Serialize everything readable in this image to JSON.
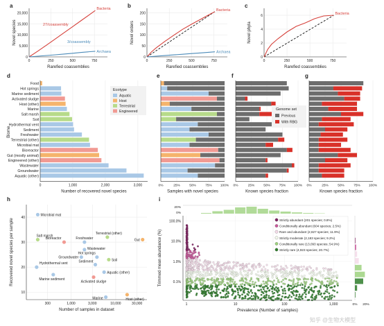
{
  "watermark": "知乎 @生物大模型",
  "colors": {
    "bacteria": "#d6413b",
    "archaea": "#4a8ab8",
    "aquatic": "#a9c8e6",
    "host": "#f5b46c",
    "terrestrial": "#b7db8a",
    "engineered": "#f19a93",
    "gray": "#6d6d6d",
    "rbg": "#d93129"
  },
  "chart_data": [
    {
      "id": "a",
      "type": "line",
      "letter": "a",
      "xlabel": "Rarefied coassemblies",
      "ylabel": "Novel species",
      "xlim": [
        0,
        900
      ],
      "ylim": [
        0,
        22000
      ],
      "xticks": [
        "0",
        "250",
        "500",
        "750"
      ],
      "yticks": [
        "0",
        "5,000",
        "10,000",
        "15,000",
        "20,000"
      ],
      "series": [
        {
          "name": "Bacteria",
          "x": [
            0,
            100,
            200,
            300,
            400,
            500,
            600,
            700,
            760
          ],
          "y": [
            0,
            2600,
            5300,
            8100,
            10900,
            13700,
            16500,
            19300,
            21000
          ]
        },
        {
          "name": "Archaea",
          "x": [
            0,
            100,
            200,
            300,
            400,
            500,
            600,
            700,
            760
          ],
          "y": [
            0,
            300,
            620,
            950,
            1300,
            1650,
            2000,
            2350,
            2550
          ]
        }
      ],
      "annotations": [
        "27/coassembly",
        "3/coassembly"
      ]
    },
    {
      "id": "b",
      "type": "line",
      "letter": "b",
      "xlabel": "Rarefied coassemblies",
      "ylabel": "Novel orders",
      "xlim": [
        0,
        900
      ],
      "ylim": [
        0,
        220
      ],
      "xticks": [
        "0",
        "250",
        "500",
        "750"
      ],
      "yticks": [
        "0",
        "50",
        "100",
        "150",
        "200"
      ],
      "series": [
        {
          "name": "Bacteria",
          "x": [
            0,
            50,
            100,
            200,
            300,
            400,
            500,
            600,
            700,
            760
          ],
          "y": [
            0,
            22,
            40,
            70,
            98,
            125,
            148,
            170,
            192,
            205
          ]
        },
        {
          "name": "Archaea",
          "x": [
            0,
            100,
            200,
            300,
            400,
            500,
            600,
            700,
            760
          ],
          "y": [
            0,
            3,
            6,
            9,
            12,
            15,
            18,
            21,
            23
          ]
        }
      ],
      "reference_line": {
        "x": [
          0,
          760
        ],
        "y": [
          0,
          205
        ]
      }
    },
    {
      "id": "c",
      "type": "line",
      "letter": "c",
      "xlabel": "Rarefied coassemblies",
      "ylabel": "Novel phyla",
      "xlim": [
        0,
        900
      ],
      "ylim": [
        0,
        7
      ],
      "xticks": [
        "0",
        "250",
        "500",
        "750"
      ],
      "yticks": [
        "0",
        "2",
        "4",
        "6"
      ],
      "series": [
        {
          "name": "Bacteria",
          "x": [
            0,
            40,
            80,
            150,
            250,
            350,
            450,
            550,
            650,
            760
          ],
          "y": [
            0,
            1.1,
            1.8,
            2.6,
            3.6,
            4.4,
            4.9,
            5.5,
            5.9,
            6.0
          ]
        }
      ],
      "reference_line": {
        "x": [
          0,
          760
        ],
        "y": [
          0,
          6
        ]
      }
    },
    {
      "id": "d",
      "type": "bar",
      "letter": "d",
      "orientation": "horizontal",
      "xlabel": "Number of recovered novel species",
      "ylabel": "Biome",
      "xlim": [
        0,
        3300
      ],
      "xticks": [
        "0",
        "1,000",
        "2,000",
        "3,000"
      ],
      "categories": [
        "Food",
        "Hot springs",
        "Marine sediment",
        "Activated sludge",
        "Host (other)",
        "Marine",
        "Salt marsh",
        "Soil",
        "Hydrothermal vent",
        "Sediment",
        "Freshwater",
        "Terrestrial (other)",
        "Microbial mat",
        "Bioreactor",
        "Gut (mostly animal)",
        "Engineered (other)",
        "Wastewater",
        "Groundwater",
        "Aquatic (other)"
      ],
      "ecotypes": [
        "Host",
        "Aquatic",
        "Aquatic",
        "Engineered",
        "Host",
        "Aquatic",
        "Terrestrial",
        "Terrestrial",
        "Aquatic",
        "Aquatic",
        "Aquatic",
        "Terrestrial",
        "Aquatic",
        "Engineered",
        "Host",
        "Engineered",
        "Aquatic",
        "Aquatic",
        "Aquatic"
      ],
      "values": [
        60,
        640,
        650,
        760,
        780,
        820,
        900,
        980,
        1010,
        1040,
        1280,
        1500,
        1530,
        1770,
        1810,
        1880,
        2100,
        2650,
        3180
      ],
      "legend": {
        "title": "Ecotype",
        "items": [
          "Aquatic",
          "Host",
          "Terrestrial",
          "Engineered"
        ]
      }
    },
    {
      "id": "e",
      "type": "bar",
      "letter": "e",
      "orientation": "horizontal",
      "stacked": true,
      "xlabel": "Samples with novel species",
      "xticks": [
        "0%",
        "25%",
        "50%",
        "75%",
        "100%"
      ],
      "values": [
        0.05,
        0.1,
        0.75,
        0.88,
        0.14,
        0.48,
        0.88,
        0.24,
        0.58,
        0.45,
        0.75,
        0.55,
        0.45,
        0.9,
        0.62,
        0.92,
        0.85,
        0.42,
        0.58
      ]
    },
    {
      "id": "f",
      "type": "bar",
      "letter": "f",
      "orientation": "horizontal",
      "stacked": true,
      "xlabel": "Known species fraction",
      "xticks": [
        "0%",
        "25%",
        "50%",
        "75%",
        "100%"
      ],
      "series": [
        {
          "name": "Previous",
          "values": [
            0.82,
            0.85,
            0.72,
            0.15,
            0.57,
            0.38,
            0.38,
            0.22,
            0.68,
            0.48,
            0.75,
            0.68,
            0.48,
            0.82,
            0.72,
            0.48,
            0.9,
            0.82,
            0.48
          ]
        },
        {
          "name": "With RBG",
          "values": [
            0.0,
            0.0,
            0.0,
            0.04,
            0.07,
            0.02,
            0.36,
            0.0,
            0.04,
            0.0,
            0.0,
            0.1,
            0.12,
            0.09,
            0.0,
            0.03,
            0.04,
            0.03,
            0.04
          ]
        }
      ],
      "legend": {
        "title": "Genome set",
        "items": [
          "Previous",
          "With RBG"
        ]
      }
    },
    {
      "id": "g",
      "type": "bar",
      "letter": "g",
      "orientation": "horizontal",
      "stacked": true,
      "xlabel": "Known species fraction",
      "xticks": [
        "0%",
        "25%",
        "50%",
        "75%",
        "100%"
      ],
      "series": [
        {
          "name": "Previous",
          "values": [
            0.85,
            0.38,
            0.45,
            0.55,
            0.2,
            0.3,
            0.5,
            0.2,
            0.15,
            0.25,
            0.18,
            0.15,
            0.15,
            0.15,
            0.45,
            0.25,
            0.15,
            0.15,
            0.2
          ]
        },
        {
          "name": "With RBG",
          "values": [
            0.0,
            0.45,
            0.35,
            0.25,
            0.55,
            0.45,
            0.35,
            0.45,
            0.55,
            0.35,
            0.35,
            0.45,
            0.35,
            0.5,
            0.3,
            0.35,
            0.5,
            0.4,
            0.35
          ]
        }
      ]
    },
    {
      "id": "h",
      "type": "scatter",
      "letter": "h",
      "xlabel": "Number of samples in dataset",
      "ylabel": "Recovered novel species per sample",
      "xscale": "log",
      "xlim": [
        100,
        50000
      ],
      "ylim": [
        7,
        45
      ],
      "xticks": [
        {
          "v": 300,
          "t": "300"
        },
        {
          "v": 1000,
          "t": "1,000"
        },
        {
          "v": 3000,
          "t": "3,000"
        },
        {
          "v": 10000,
          "t": "10,000"
        },
        {
          "v": 30000,
          "t": "30,000"
        }
      ],
      "yticks": [
        10,
        20,
        30,
        40
      ],
      "points": [
        {
          "label": "Microbial mat",
          "x": 180,
          "y": 41,
          "eco": "Aquatic"
        },
        {
          "label": "Salt marsh",
          "x": 180,
          "y": 31,
          "eco": "Terrestrial"
        },
        {
          "label": "Bioreactor",
          "x": 700,
          "y": 30,
          "eco": "Engineered"
        },
        {
          "label": "Freshwater",
          "x": 2000,
          "y": 30,
          "eco": "Aquatic"
        },
        {
          "label": "Terrestrial (other)",
          "x": 6500,
          "y": 32,
          "eco": "Terrestrial"
        },
        {
          "label": "Gut",
          "x": 40000,
          "y": 31,
          "eco": "Host"
        },
        {
          "label": "Wastewater",
          "x": 2000,
          "y": 27,
          "eco": "Aquatic"
        },
        {
          "label": "Groundwater",
          "x": 1700,
          "y": 24,
          "eco": "Aquatic"
        },
        {
          "label": "Hot springs",
          "x": 3800,
          "y": 24,
          "eco": "Aquatic"
        },
        {
          "label": "Soil",
          "x": 7000,
          "y": 23,
          "eco": "Terrestrial"
        },
        {
          "label": "Sediment",
          "x": 3500,
          "y": 21,
          "eco": "Aquatic"
        },
        {
          "label": "Hydrothermal vent",
          "x": 170,
          "y": 20,
          "eco": "Aquatic"
        },
        {
          "label": "Aquatic (other)",
          "x": 5500,
          "y": 18,
          "eco": "Aquatic"
        },
        {
          "label": "Marine sediment",
          "x": 400,
          "y": 17,
          "eco": "Aquatic"
        },
        {
          "label": "Activated sludge",
          "x": 3200,
          "y": 16,
          "eco": "Engineered"
        },
        {
          "label": "Host (other)",
          "x": 18000,
          "y": 9,
          "eco": "Host"
        },
        {
          "label": "Marine",
          "x": 6000,
          "y": 8,
          "eco": "Aquatic"
        }
      ]
    },
    {
      "id": "i",
      "type": "scatter",
      "letter": "i",
      "xlabel": "Prevalence (Number of samples)",
      "ylabel": "Trimmed mean abundance (%)",
      "xscale": "log",
      "yscale": "log",
      "xticks": [
        {
          "v": 1,
          "t": "1"
        },
        {
          "v": 10,
          "t": "10"
        },
        {
          "v": 100,
          "t": "100"
        },
        {
          "v": 1000,
          "t": "1,000"
        }
      ],
      "yticks": [
        {
          "v": 100,
          "t": "100.0%"
        },
        {
          "v": 10,
          "t": "10.0%"
        },
        {
          "v": 1,
          "t": "1.0%"
        },
        {
          "v": 0.1,
          "t": "0.1%"
        }
      ],
      "top_hist_ticks": [
        "20%",
        "0%"
      ],
      "right_hist_ticks": [
        "0%",
        "20%"
      ],
      "classes": [
        {
          "name": "Strictly abundant (201 species; 0.8%)",
          "color": "#7e1f5f"
        },
        {
          "name": "Conditionally abundant (604 species; 2.5%)",
          "color": "#c9599b"
        },
        {
          "name": "Rare and abundant (2,827 species; 11.9%)",
          "color": "#f4dbe9"
        },
        {
          "name": "Strictly moderate (2,183 species; 9.2%)",
          "color": "#f3f9ec"
        },
        {
          "name": "Conditionally rare (13,093 species; 54.9%)",
          "color": "#9ed27f"
        },
        {
          "name": "Strictly rare (4,923 species; 20.7%)",
          "color": "#2f7d2b"
        }
      ]
    }
  ]
}
